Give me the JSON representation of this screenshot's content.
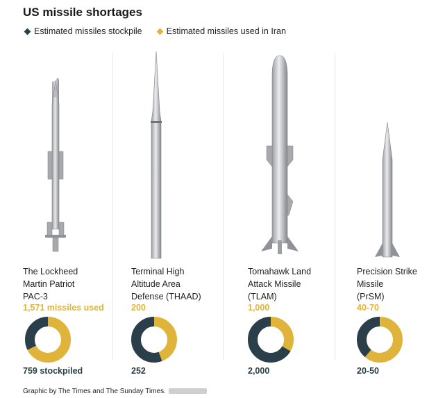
{
  "title": "US missile shortages",
  "legend": {
    "stockpile": "Estimated missiles stockpile",
    "used": "Estimated missiles used in Iran"
  },
  "colors": {
    "stockpile": "#2a3f4a",
    "used": "#e0b43a"
  },
  "source": "Graphic by The Times and The Sunday Times.",
  "chart_data": {
    "type": "pie",
    "title": "US missile shortages",
    "series_names": [
      "Estimated missiles stockpile",
      "Estimated missiles used in Iran"
    ],
    "items": [
      {
        "name_lines": [
          "The Lockheed",
          "Martin Patriot",
          "PAC-3"
        ],
        "used_label": "1,571 missiles used",
        "stock_label": "759 stockpiled",
        "used": 1571,
        "stock": 759
      },
      {
        "name_lines": [
          "Terminal High",
          "Altitude Area",
          "Defense (THAAD)"
        ],
        "used_label": "200",
        "stock_label": "252",
        "used": 200,
        "stock": 252
      },
      {
        "name_lines": [
          "Tomahawk Land",
          "Attack Missile",
          "(TLAM)"
        ],
        "used_label": "1,000",
        "stock_label": "2,000",
        "used": 1000,
        "stock": 2000
      },
      {
        "name_lines": [
          "Precision Strike",
          "Missile",
          "(PrSM)"
        ],
        "used_label": "40-70",
        "stock_label": "20-50",
        "used": 55,
        "stock": 35
      }
    ]
  }
}
